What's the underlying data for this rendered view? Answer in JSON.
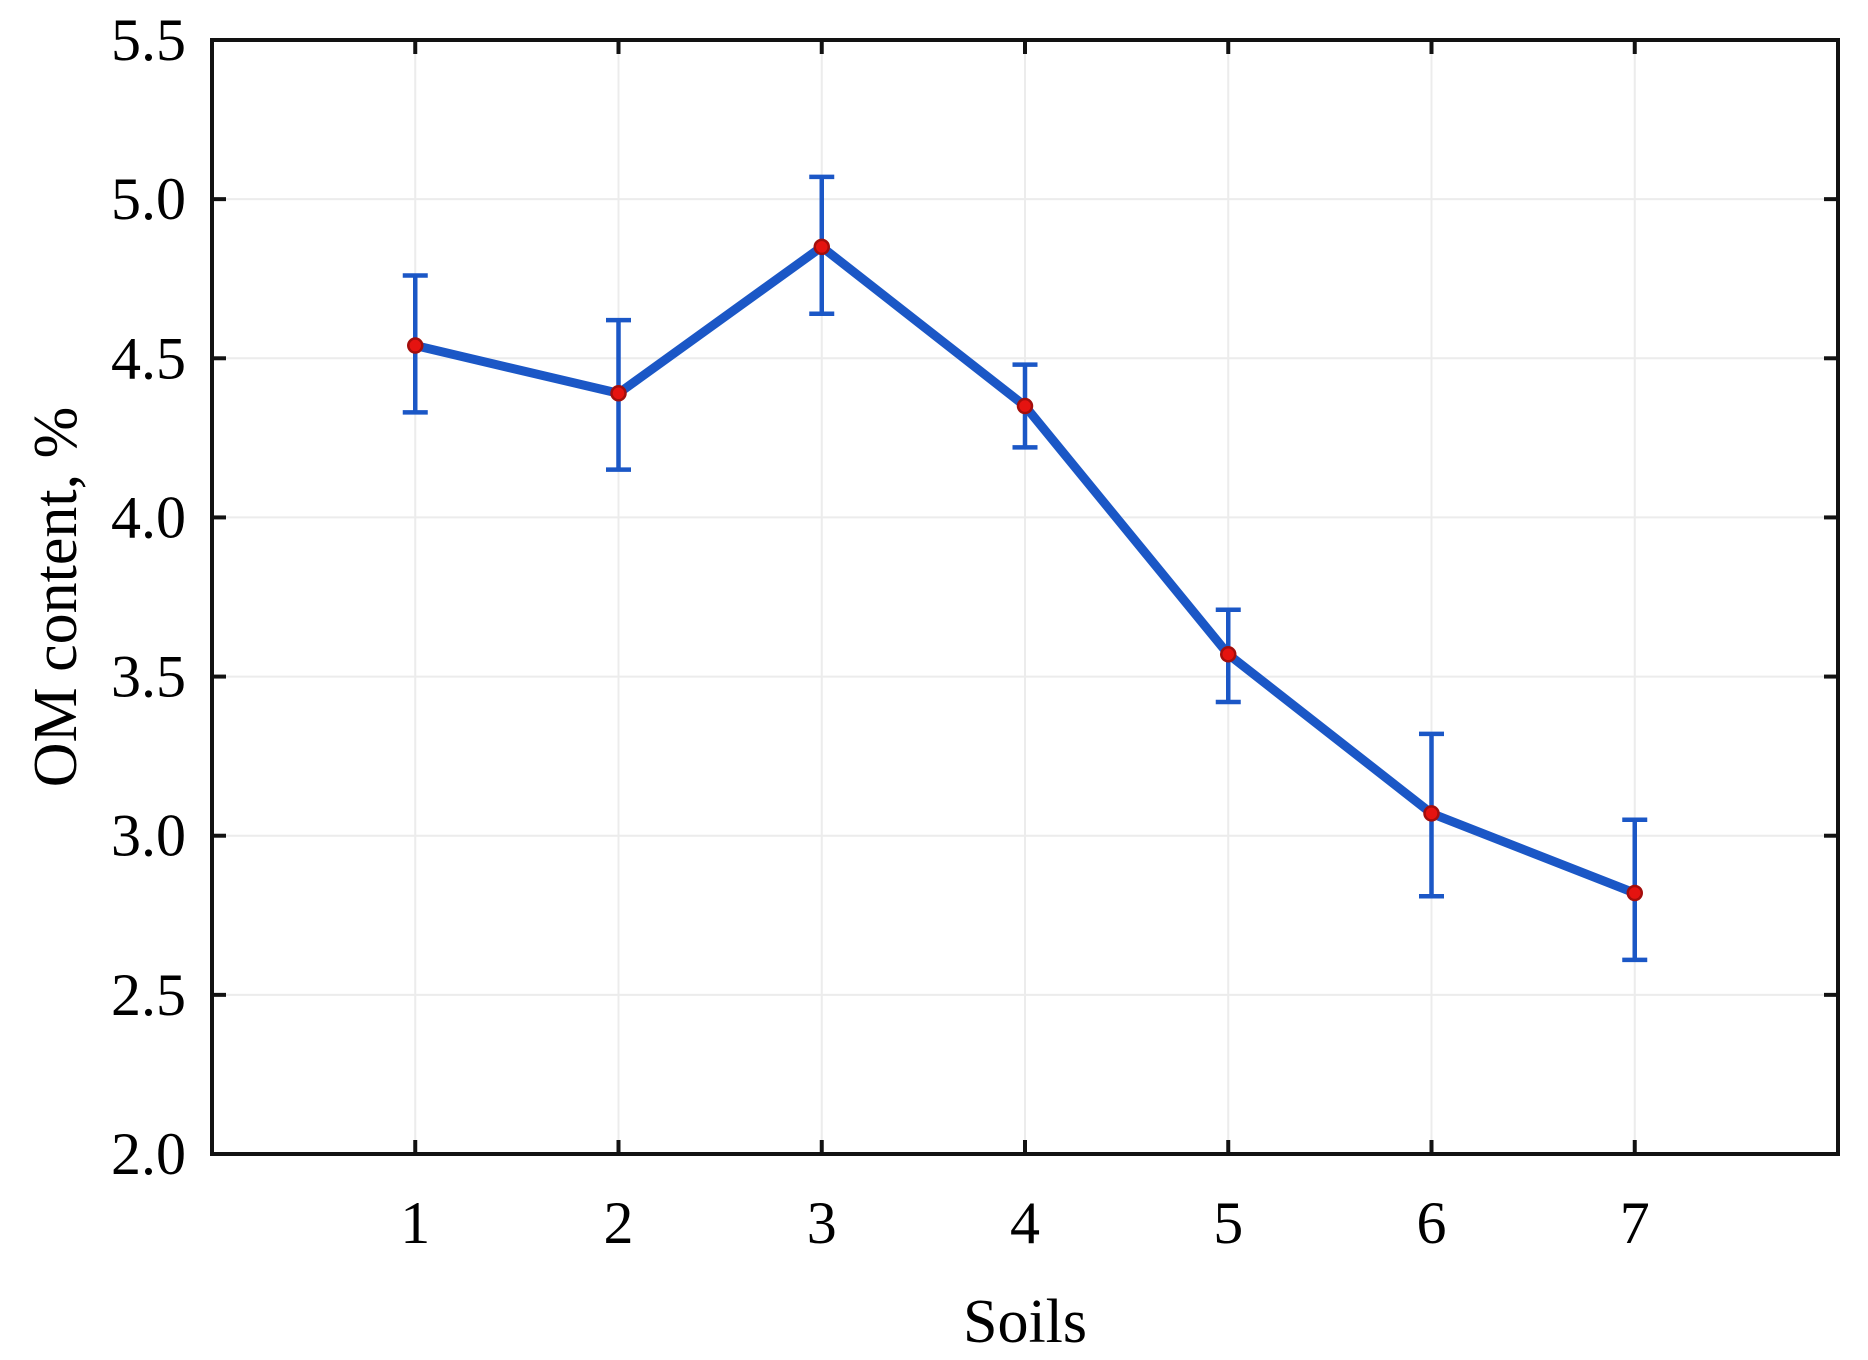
{
  "figure": {
    "background": "#FFFFFF"
  },
  "chart_data": {
    "type": "line",
    "title": "",
    "xlabel": "Soils",
    "ylabel": "OM content, %",
    "categories": [
      1,
      2,
      3,
      4,
      5,
      6,
      7
    ],
    "x_tick_labels": [
      "1",
      "2",
      "3",
      "4",
      "5",
      "6",
      "7"
    ],
    "series": [
      {
        "name": "OM content",
        "values": [
          4.54,
          4.39,
          4.85,
          4.35,
          3.57,
          3.07,
          2.82
        ],
        "error_upper": [
          4.76,
          4.62,
          5.07,
          4.48,
          3.71,
          3.32,
          3.05
        ],
        "error_lower": [
          4.33,
          4.15,
          4.64,
          4.22,
          3.42,
          2.81,
          2.61
        ]
      }
    ],
    "xlim": [
      0,
      8
    ],
    "ylim": [
      2.0,
      5.5
    ],
    "y_ticks": [
      2.0,
      2.5,
      3.0,
      3.5,
      4.0,
      4.5,
      5.0,
      5.5
    ],
    "y_tick_labels": [
      "2.0",
      "2.5",
      "3.0",
      "3.5",
      "4.0",
      "4.5",
      "5.0",
      "5.5"
    ],
    "grid": true,
    "legend_position": "none",
    "marker_shape": "circle",
    "colors": {
      "line": "#1B57C6",
      "error_bar": "#1B57C6",
      "marker_fill": "#E51310",
      "marker_edge": "#A30E0C",
      "grid": "#ECECEC",
      "axis": "#121212",
      "background": "#FFFFFF",
      "text": "#000000"
    }
  }
}
